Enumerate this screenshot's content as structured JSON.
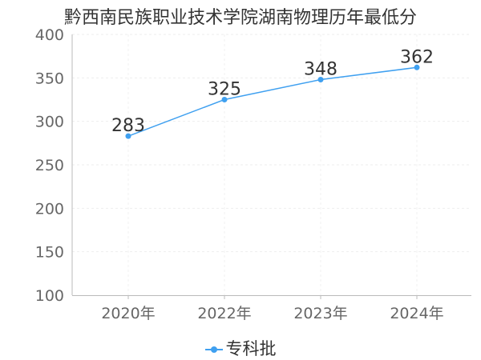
{
  "chart_data": {
    "type": "line",
    "title": "黔西南民族职业技术学院湖南物理历年最低分",
    "categories": [
      "2020年",
      "2022年",
      "2023年",
      "2024年"
    ],
    "series": [
      {
        "name": "专科批",
        "values": [
          283,
          325,
          348,
          362
        ],
        "color": "#3fa0f0"
      }
    ],
    "ylim": [
      100,
      400
    ],
    "yticks": [
      100,
      150,
      200,
      250,
      300,
      350,
      400
    ],
    "grid": true,
    "legend": "bottom"
  }
}
